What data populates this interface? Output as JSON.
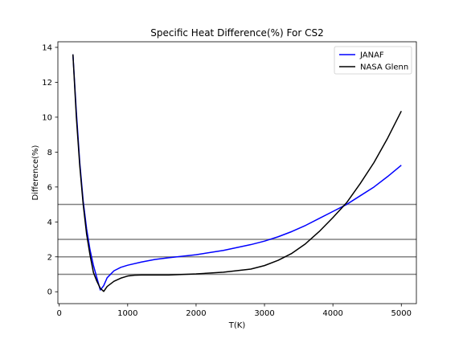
{
  "chart_data": {
    "type": "line",
    "title": "Specific Heat Difference(%) For CS2",
    "xlabel": "T(K)",
    "ylabel": "Difference(%)",
    "xlim": [
      -20,
      5220
    ],
    "ylim": [
      -0.68,
      14.32
    ],
    "xticks": [
      0,
      1000,
      2000,
      3000,
      4000,
      5000
    ],
    "yticks": [
      0,
      2,
      4,
      6,
      8,
      10,
      12,
      14
    ],
    "grid": false,
    "legend": "top-right",
    "hlines": [
      {
        "y": 1,
        "color": "#808080"
      },
      {
        "y": 2,
        "color": "#808080"
      },
      {
        "y": 3,
        "color": "#808080"
      },
      {
        "y": 5,
        "color": "#808080"
      }
    ],
    "series": [
      {
        "name": "JANAF",
        "color": "#0000ff",
        "points": [
          [
            200,
            13.6
          ],
          [
            250,
            10.3
          ],
          [
            300,
            7.4
          ],
          [
            350,
            5.2
          ],
          [
            400,
            3.6
          ],
          [
            450,
            2.4
          ],
          [
            500,
            1.5
          ],
          [
            550,
            0.8
          ],
          [
            600,
            0.1
          ],
          [
            650,
            0.35
          ],
          [
            700,
            0.8
          ],
          [
            800,
            1.2
          ],
          [
            900,
            1.4
          ],
          [
            1000,
            1.52
          ],
          [
            1200,
            1.7
          ],
          [
            1400,
            1.85
          ],
          [
            1600,
            1.95
          ],
          [
            2000,
            2.12
          ],
          [
            2400,
            2.37
          ],
          [
            2800,
            2.7
          ],
          [
            3000,
            2.9
          ],
          [
            3200,
            3.15
          ],
          [
            3400,
            3.45
          ],
          [
            3600,
            3.8
          ],
          [
            3800,
            4.2
          ],
          [
            4000,
            4.6
          ],
          [
            4200,
            5.0
          ],
          [
            4400,
            5.5
          ],
          [
            4600,
            6.0
          ],
          [
            4800,
            6.6
          ],
          [
            5000,
            7.25
          ]
        ]
      },
      {
        "name": "NASA Glenn",
        "color": "#000000",
        "points": [
          [
            200,
            13.6
          ],
          [
            250,
            10.0
          ],
          [
            300,
            7.2
          ],
          [
            350,
            5.0
          ],
          [
            400,
            3.3
          ],
          [
            450,
            2.1
          ],
          [
            500,
            1.1
          ],
          [
            550,
            0.6
          ],
          [
            600,
            0.2
          ],
          [
            650,
            0.02
          ],
          [
            700,
            0.3
          ],
          [
            800,
            0.6
          ],
          [
            900,
            0.78
          ],
          [
            1000,
            0.9
          ],
          [
            1100,
            0.95
          ],
          [
            1200,
            0.96
          ],
          [
            1600,
            0.96
          ],
          [
            2000,
            1.02
          ],
          [
            2400,
            1.12
          ],
          [
            2800,
            1.3
          ],
          [
            3000,
            1.5
          ],
          [
            3200,
            1.8
          ],
          [
            3400,
            2.2
          ],
          [
            3600,
            2.75
          ],
          [
            3800,
            3.45
          ],
          [
            4000,
            4.25
          ],
          [
            4200,
            5.1
          ],
          [
            4400,
            6.2
          ],
          [
            4600,
            7.4
          ],
          [
            4800,
            8.8
          ],
          [
            5000,
            10.35
          ]
        ]
      }
    ]
  }
}
